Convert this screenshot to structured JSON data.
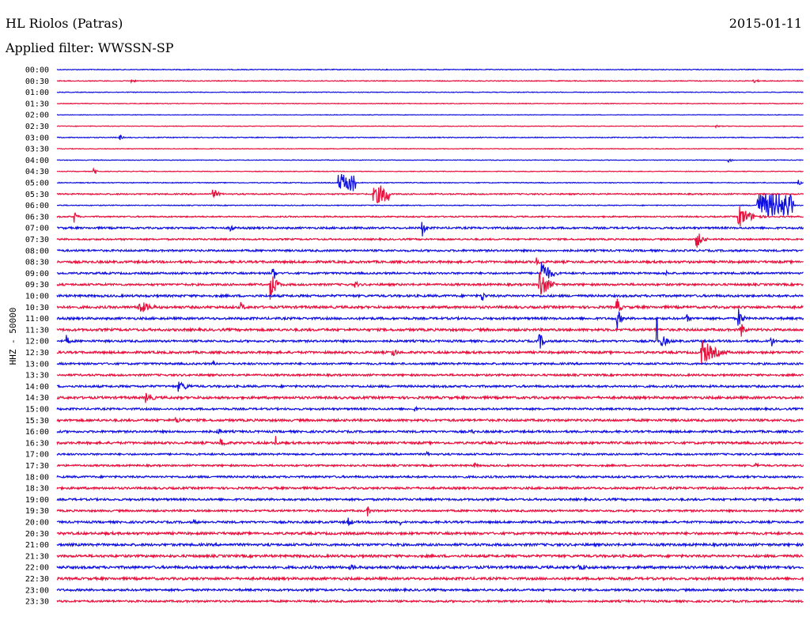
{
  "header": {
    "station": "HL Riolos (Patras)",
    "date": "2015-01-11",
    "filter_label": "Applied filter: WWSSN-SP"
  },
  "channel_label": "HHZ - 50000",
  "chart_data": {
    "type": "helicorder",
    "title": "HL Riolos (Patras)",
    "subtitle": "Applied filter: WWSSN-SP",
    "ylabel": "HHZ - 50000",
    "row_interval_minutes": 30,
    "colors": {
      "even_row": "#1010e0",
      "odd_row": "#e8103c"
    },
    "rows": [
      {
        "time": "00:00",
        "noise": 0.5,
        "events": []
      },
      {
        "time": "00:30",
        "noise": 0.5,
        "events": [
          {
            "minute": 3,
            "amp": 2,
            "dur": 0.6
          },
          {
            "minute": 28,
            "amp": 2.5,
            "dur": 0.6
          }
        ]
      },
      {
        "time": "01:00",
        "noise": 0.4,
        "events": []
      },
      {
        "time": "01:30",
        "noise": 0.4,
        "events": []
      },
      {
        "time": "02:00",
        "noise": 0.3,
        "events": []
      },
      {
        "time": "02:30",
        "noise": 0.4,
        "events": [
          {
            "minute": 26.5,
            "amp": 2,
            "dur": 0.3
          }
        ]
      },
      {
        "time": "03:00",
        "noise": 0.5,
        "events": [
          {
            "minute": 2.5,
            "amp": 5,
            "dur": 0.3
          }
        ]
      },
      {
        "time": "03:30",
        "noise": 0.4,
        "events": []
      },
      {
        "time": "04:00",
        "noise": 0.4,
        "events": [
          {
            "minute": 27,
            "amp": 3,
            "dur": 0.4
          }
        ]
      },
      {
        "time": "04:30",
        "noise": 0.4,
        "events": [
          {
            "minute": 1.5,
            "amp": 5,
            "dur": 0.3
          }
        ]
      },
      {
        "time": "05:00",
        "noise": 0.5,
        "events": [
          {
            "minute": 11.3,
            "amp": 11,
            "dur": 0.7,
            "block": true
          },
          {
            "minute": 29.8,
            "amp": 5,
            "dur": 0.2
          }
        ]
      },
      {
        "time": "05:30",
        "noise": 0.8,
        "events": [
          {
            "minute": 6.3,
            "amp": 6,
            "dur": 0.6
          },
          {
            "minute": 12.7,
            "amp": 11,
            "dur": 0.7,
            "block": true
          }
        ]
      },
      {
        "time": "06:00",
        "noise": 0.5,
        "events": [
          {
            "minute": 28.1,
            "amp": 15,
            "dur": 1.5,
            "block": true
          }
        ]
      },
      {
        "time": "06:30",
        "noise": 0.8,
        "events": [
          {
            "minute": 0.7,
            "amp": 8,
            "dur": 0.3
          },
          {
            "minute": 27.4,
            "amp": 15,
            "dur": 1.2
          }
        ]
      },
      {
        "time": "07:00",
        "noise": 1.2,
        "events": [
          {
            "minute": 7,
            "amp": 6,
            "dur": 0.3
          },
          {
            "minute": 14.7,
            "amp": 12,
            "dur": 0.3
          }
        ]
      },
      {
        "time": "07:30",
        "noise": 1.0,
        "events": [
          {
            "minute": 25.7,
            "amp": 12,
            "dur": 0.6
          }
        ]
      },
      {
        "time": "08:00",
        "noise": 1.2,
        "events": []
      },
      {
        "time": "08:30",
        "noise": 1.4,
        "events": [
          {
            "minute": 19.3,
            "amp": 8,
            "dur": 0.2
          }
        ]
      },
      {
        "time": "09:00",
        "noise": 1.2,
        "events": [
          {
            "minute": 8.7,
            "amp": 14,
            "dur": 0.2
          },
          {
            "minute": 19.5,
            "amp": 18,
            "dur": 0.8
          },
          {
            "minute": 24.5,
            "amp": 3,
            "dur": 0.4
          }
        ]
      },
      {
        "time": "09:30",
        "noise": 1.3,
        "events": [
          {
            "minute": 8.6,
            "amp": 22,
            "dur": 0.5
          },
          {
            "minute": 12.0,
            "amp": 6,
            "dur": 0.3
          },
          {
            "minute": 19.4,
            "amp": 22,
            "dur": 0.8
          }
        ]
      },
      {
        "time": "10:00",
        "noise": 1.4,
        "events": [
          {
            "minute": 17.1,
            "amp": 8,
            "dur": 0.3
          }
        ]
      },
      {
        "time": "10:30",
        "noise": 1.5,
        "events": [
          {
            "minute": 3.3,
            "amp": 9,
            "dur": 1.3
          },
          {
            "minute": 7.4,
            "amp": 7,
            "dur": 0.4
          },
          {
            "minute": 22.5,
            "amp": 12,
            "dur": 0.4
          }
        ]
      },
      {
        "time": "11:00",
        "noise": 1.4,
        "events": [
          {
            "minute": 22.5,
            "amp": 15,
            "dur": 0.4
          },
          {
            "minute": 25.3,
            "amp": 6,
            "dur": 0.4
          },
          {
            "minute": 27.4,
            "amp": 14,
            "dur": 0.4
          }
        ]
      },
      {
        "time": "11:30",
        "noise": 1.5,
        "events": [
          {
            "minute": 27.5,
            "amp": 14,
            "dur": 0.3
          }
        ]
      },
      {
        "time": "12:00",
        "noise": 1.3,
        "events": [
          {
            "minute": 0.4,
            "amp": 8,
            "dur": 0.3
          },
          {
            "minute": 19.4,
            "amp": 11,
            "dur": 0.5
          },
          {
            "minute": 24.3,
            "amp": 8,
            "dur": 0.8
          },
          {
            "minute": 24.1,
            "amp": 130,
            "dur": 0.04
          },
          {
            "minute": 28.7,
            "amp": 8,
            "dur": 0.4
          }
        ]
      },
      {
        "time": "12:30",
        "noise": 1.4,
        "events": [
          {
            "minute": 13.5,
            "amp": 6,
            "dur": 0.6
          },
          {
            "minute": 25.9,
            "amp": 18,
            "dur": 1.4
          }
        ]
      },
      {
        "time": "13:00",
        "noise": 1.2,
        "events": [
          {
            "minute": 6.3,
            "amp": 3,
            "dur": 0.4
          }
        ]
      },
      {
        "time": "13:30",
        "noise": 1.2,
        "events": []
      },
      {
        "time": "14:00",
        "noise": 1.3,
        "events": [
          {
            "minute": 4.9,
            "amp": 7,
            "dur": 1.1
          }
        ]
      },
      {
        "time": "14:30",
        "noise": 1.5,
        "events": [
          {
            "minute": 3.6,
            "amp": 7,
            "dur": 0.8
          }
        ]
      },
      {
        "time": "15:00",
        "noise": 1.2,
        "events": [
          {
            "minute": 14.4,
            "amp": 5,
            "dur": 0.2
          }
        ]
      },
      {
        "time": "15:30",
        "noise": 1.4,
        "events": [
          {
            "minute": 4.8,
            "amp": 4,
            "dur": 1.2
          }
        ]
      },
      {
        "time": "16:00",
        "noise": 1.3,
        "events": [
          {
            "minute": 6.5,
            "amp": 5,
            "dur": 0.4
          },
          {
            "minute": 16.7,
            "amp": 3,
            "dur": 0.4
          }
        ]
      },
      {
        "time": "16:30",
        "noise": 1.4,
        "events": [
          {
            "minute": 6.6,
            "amp": 6,
            "dur": 0.7
          },
          {
            "minute": 8.8,
            "amp": 9,
            "dur": 0.2
          }
        ]
      },
      {
        "time": "17:00",
        "noise": 1.1,
        "events": [
          {
            "minute": 14.9,
            "amp": 4,
            "dur": 0.2
          }
        ]
      },
      {
        "time": "17:30",
        "noise": 1.1,
        "events": [
          {
            "minute": 16.8,
            "amp": 3,
            "dur": 0.5
          },
          {
            "minute": 28.1,
            "amp": 4,
            "dur": 0.3
          }
        ]
      },
      {
        "time": "18:00",
        "noise": 1.2,
        "events": []
      },
      {
        "time": "18:30",
        "noise": 1.3,
        "events": []
      },
      {
        "time": "19:00",
        "noise": 1.3,
        "events": []
      },
      {
        "time": "19:30",
        "noise": 1.2,
        "events": [
          {
            "minute": 12.5,
            "amp": 7,
            "dur": 0.4
          }
        ]
      },
      {
        "time": "20:00",
        "noise": 1.3,
        "events": [
          {
            "minute": 5.5,
            "amp": 4,
            "dur": 0.5
          },
          {
            "minute": 11.7,
            "amp": 6,
            "dur": 0.6
          },
          {
            "minute": 13.8,
            "amp": 4,
            "dur": 0.2
          }
        ]
      },
      {
        "time": "20:30",
        "noise": 1.5,
        "events": []
      },
      {
        "time": "21:00",
        "noise": 1.5,
        "events": []
      },
      {
        "time": "21:30",
        "noise": 1.5,
        "events": []
      },
      {
        "time": "22:00",
        "noise": 1.6,
        "events": [
          {
            "minute": 11.8,
            "amp": 4,
            "dur": 1.0
          },
          {
            "minute": 21.0,
            "amp": 5,
            "dur": 1.0
          }
        ]
      },
      {
        "time": "22:30",
        "noise": 1.5,
        "events": []
      },
      {
        "time": "23:00",
        "noise": 1.3,
        "events": []
      },
      {
        "time": "23:30",
        "noise": 1.2,
        "events": []
      }
    ]
  }
}
